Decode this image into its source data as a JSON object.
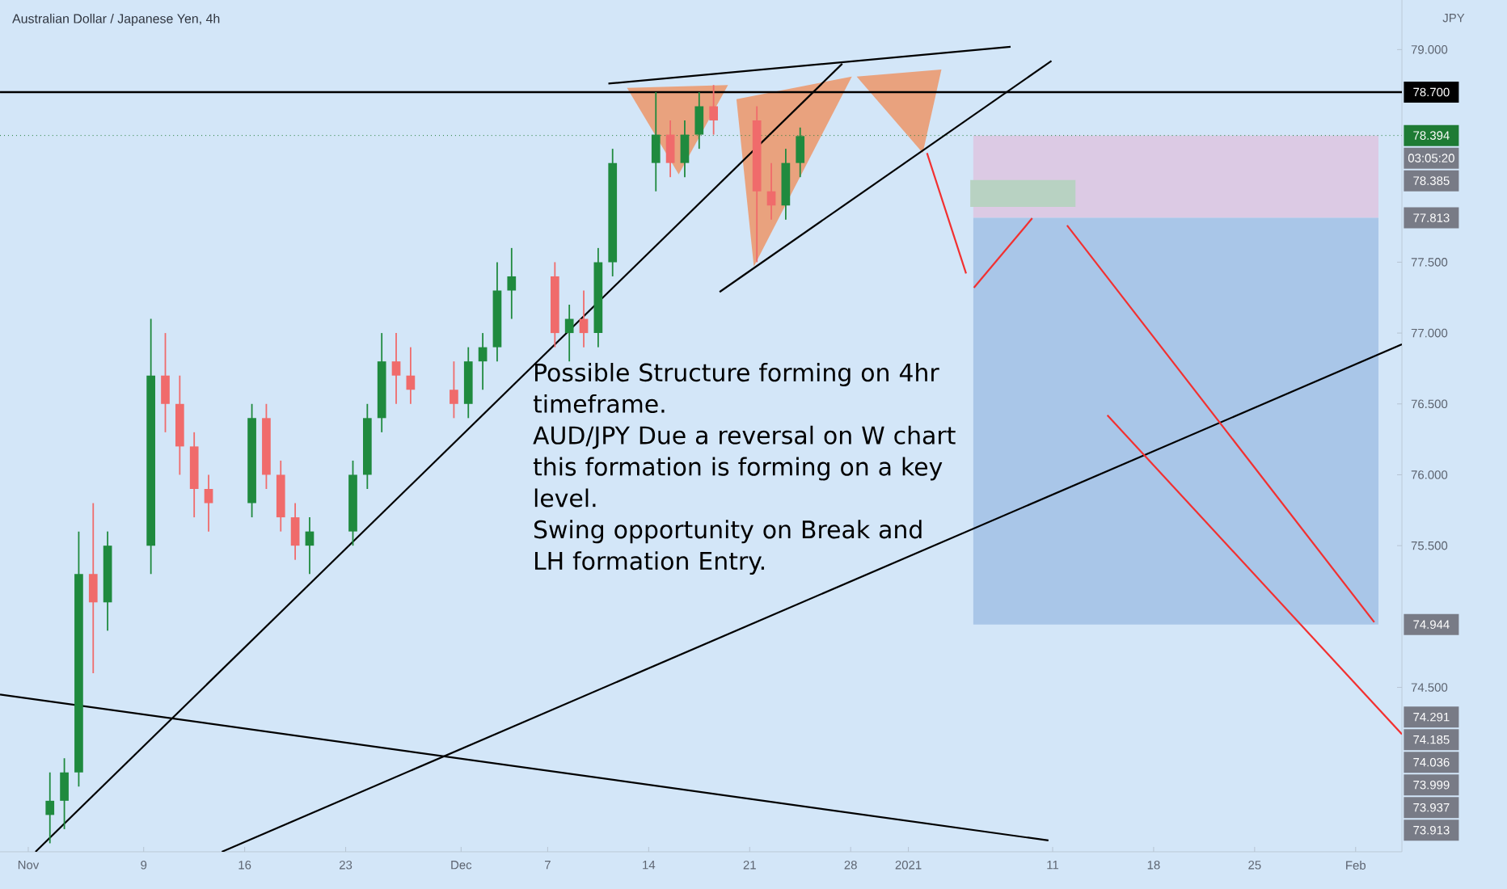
{
  "chart_data": {
    "type": "candlestick",
    "title": "Australian Dollar / Japanese Yen, 4h",
    "ylabel": "JPY",
    "x": [
      "2020-11-02T12:00",
      "2020-11-03T12:00",
      "2020-11-04T12:00",
      "2020-11-05T12:00",
      "2020-11-06T12:00",
      "2020-11-09T12:00",
      "2020-11-10T12:00",
      "2020-11-11T12:00",
      "2020-11-12T12:00",
      "2020-11-13T12:00",
      "2020-11-16T12:00",
      "2020-11-17T12:00",
      "2020-11-18T12:00",
      "2020-11-19T12:00",
      "2020-11-20T12:00",
      "2020-11-23T12:00",
      "2020-11-24T12:00",
      "2020-11-25T12:00",
      "2020-11-26T12:00",
      "2020-11-27T12:00",
      "2020-11-30T12:00",
      "2020-12-01T12:00",
      "2020-12-02T12:00",
      "2020-12-03T12:00",
      "2020-12-04T12:00",
      "2020-12-07T12:00",
      "2020-12-08T12:00",
      "2020-12-09T12:00",
      "2020-12-10T12:00",
      "2020-12-11T12:00",
      "2020-12-14T12:00",
      "2020-12-15T12:00",
      "2020-12-16T12:00",
      "2020-12-17T12:00",
      "2020-12-18T12:00",
      "2020-12-21T12:00",
      "2020-12-22T12:00",
      "2020-12-23T12:00",
      "2020-12-24T12:00"
    ],
    "ohlc": [
      [
        73.6,
        73.9,
        73.4,
        73.7
      ],
      [
        73.7,
        74.0,
        73.5,
        73.9
      ],
      [
        73.9,
        75.6,
        73.8,
        75.3
      ],
      [
        75.3,
        75.8,
        74.6,
        75.1
      ],
      [
        75.1,
        75.6,
        74.9,
        75.5
      ],
      [
        75.5,
        77.1,
        75.3,
        76.7
      ],
      [
        76.7,
        77.0,
        76.3,
        76.5
      ],
      [
        76.5,
        76.7,
        76.0,
        76.2
      ],
      [
        76.2,
        76.3,
        75.7,
        75.9
      ],
      [
        75.9,
        76.0,
        75.6,
        75.8
      ],
      [
        75.8,
        76.5,
        75.7,
        76.4
      ],
      [
        76.4,
        76.5,
        75.9,
        76.0
      ],
      [
        76.0,
        76.1,
        75.6,
        75.7
      ],
      [
        75.7,
        75.8,
        75.4,
        75.5
      ],
      [
        75.5,
        75.7,
        75.3,
        75.6
      ],
      [
        75.6,
        76.1,
        75.5,
        76.0
      ],
      [
        76.0,
        76.5,
        75.9,
        76.4
      ],
      [
        76.4,
        77.0,
        76.3,
        76.8
      ],
      [
        76.8,
        77.0,
        76.5,
        76.7
      ],
      [
        76.7,
        76.9,
        76.5,
        76.6
      ],
      [
        76.6,
        76.8,
        76.4,
        76.5
      ],
      [
        76.5,
        76.9,
        76.4,
        76.8
      ],
      [
        76.8,
        77.0,
        76.6,
        76.9
      ],
      [
        76.9,
        77.5,
        76.8,
        77.3
      ],
      [
        77.3,
        77.6,
        77.1,
        77.4
      ],
      [
        77.4,
        77.5,
        76.9,
        77.0
      ],
      [
        77.0,
        77.2,
        76.8,
        77.1
      ],
      [
        77.1,
        77.3,
        76.9,
        77.0
      ],
      [
        77.0,
        77.6,
        76.9,
        77.5
      ],
      [
        77.5,
        78.3,
        77.4,
        78.2
      ],
      [
        78.2,
        78.7,
        78.0,
        78.4
      ],
      [
        78.4,
        78.5,
        78.1,
        78.2
      ],
      [
        78.2,
        78.5,
        78.1,
        78.4
      ],
      [
        78.4,
        78.7,
        78.3,
        78.6
      ],
      [
        78.6,
        78.75,
        78.4,
        78.5
      ],
      [
        78.5,
        78.6,
        77.5,
        78.0
      ],
      [
        78.0,
        78.2,
        77.8,
        77.9
      ],
      [
        77.9,
        78.3,
        77.8,
        78.2
      ],
      [
        78.2,
        78.45,
        78.1,
        78.39
      ]
    ],
    "series": [
      {
        "type": "area",
        "color": "#dccae4",
        "x": [
          "2021-01-05T12:00",
          "2021-02-02T14:00",
          "2021-02-02T14:00",
          "2021-01-05T12:00"
        ],
        "values": [
          78.394,
          78.394,
          77.813,
          77.813
        ]
      },
      {
        "type": "area",
        "color": "#a9c6e8",
        "x": [
          "2021-01-05T12:00",
          "2021-02-02T14:00",
          "2021-02-02T14:00",
          "2021-01-05T12:00"
        ],
        "values": [
          77.813,
          77.813,
          74.944,
          74.944
        ]
      },
      {
        "type": "area",
        "color": "#b8d2c2",
        "x": [
          "2021-01-05T07:00",
          "2021-01-12T14:00",
          "2021-01-12T14:00",
          "2021-01-05T07:00"
        ],
        "values": [
          78.08,
          78.08,
          77.89,
          77.89
        ]
      },
      {
        "type": "area",
        "color": "#e9a27e",
        "x": [
          "2020-12-12T12:00",
          "2020-12-19T12:00",
          "2020-12-16T02:00"
        ],
        "values": [
          78.73,
          78.75,
          78.12
        ]
      },
      {
        "type": "area",
        "color": "#e9a27e",
        "x": [
          "2020-12-20T02:00",
          "2020-12-28T02:00",
          "2020-12-21T07:00"
        ],
        "values": [
          78.65,
          78.81,
          77.47
        ]
      },
      {
        "type": "area",
        "color": "#e9a27e",
        "x": [
          "2020-12-28T10:00",
          "2021-01-03T07:00",
          "2021-01-02T00:00"
        ],
        "values": [
          78.81,
          78.86,
          78.27
        ]
      },
      {
        "type": "line",
        "color": "#000000",
        "x": [
          "2020-11-01T12:00",
          "2020-12-27T10:00"
        ],
        "values": [
          73.34,
          78.9
        ]
      },
      {
        "type": "line",
        "color": "#000000",
        "x": [
          "2020-12-11T05:00",
          "2021-01-08T02:00"
        ],
        "values": [
          78.76,
          79.02
        ]
      },
      {
        "type": "line",
        "color": "#000000",
        "x": [
          "2020-12-18T22:00",
          "2021-01-10T22:00"
        ],
        "values": [
          77.29,
          78.92
        ]
      },
      {
        "type": "line",
        "color": "#000000",
        "x": [
          "2020-11-14T10:00",
          "2021-02-04T05:00"
        ],
        "values": [
          73.34,
          76.92
        ]
      },
      {
        "type": "line",
        "color": "#000000",
        "x": [
          "2020-10-30T01:00",
          "2021-01-10T17:00"
        ],
        "values": [
          74.45,
          73.42
        ]
      },
      {
        "type": "line",
        "color": "#f23030",
        "x": [
          "2021-01-02T07:00",
          "2021-01-05T00:00"
        ],
        "values": [
          78.27,
          77.42
        ]
      },
      {
        "type": "line",
        "color": "#f23030",
        "x": [
          "2021-01-05T13:00",
          "2021-01-09T14:00"
        ],
        "values": [
          77.32,
          77.81
        ]
      },
      {
        "type": "line",
        "color": "#f23030",
        "x": [
          "2021-01-12T00:00",
          "2021-02-02T07:00"
        ],
        "values": [
          77.76,
          74.96
        ]
      },
      {
        "type": "line",
        "color": "#f23030",
        "x": [
          "2021-01-14T19:00",
          "2021-02-04T05:00"
        ],
        "values": [
          76.42,
          74.17
        ]
      }
    ],
    "ref_lines": [
      {
        "axis": "y",
        "value": 78.7,
        "label": "78.700",
        "color": "#000000",
        "line_style": "solid"
      },
      {
        "axis": "y",
        "value": 78.394,
        "label": "78.394",
        "color": "#1e7b34",
        "line_style": "dotted"
      }
    ],
    "annotations": [
      "Possible Structure forming on 4hr timeframe.",
      "AUD/JPY Due a reversal on W chart this formation is forming on a key level.",
      "Swing opportunity on Break and LH formation Entry.",
      "03:05:20",
      "78.385",
      {
        "text": "77.813",
        "y": 77.813
      },
      {
        "text": "74.944",
        "y": 74.944
      },
      {
        "text": "74.291",
        "y": 74.291
      },
      "74.185",
      "74.036",
      "73.999",
      "73.937",
      "73.913"
    ],
    "xlim": [
      "2020-10-30T01:00",
      "2021-02-04T05:00"
    ],
    "ylim": [
      73.34,
      79.35
    ],
    "xticks": [
      {
        "value": "2020-11-01",
        "label": "Nov"
      },
      {
        "value": "2020-11-09",
        "label": "9"
      },
      {
        "value": "2020-11-16",
        "label": "16"
      },
      {
        "value": "2020-11-23",
        "label": "23"
      },
      {
        "value": "2020-12-01",
        "label": "Dec"
      },
      {
        "value": "2020-12-07",
        "label": "7"
      },
      {
        "value": "2020-12-14",
        "label": "14"
      },
      {
        "value": "2020-12-21",
        "label": "21"
      },
      {
        "value": "2020-12-28",
        "label": "28"
      },
      {
        "value": "2021-01-01",
        "label": "2021"
      },
      {
        "value": "2021-01-11",
        "label": "11"
      },
      {
        "value": "2021-01-18",
        "label": "18"
      },
      {
        "value": "2021-01-25",
        "label": "25"
      },
      {
        "value": "2021-02-01",
        "label": "Feb"
      }
    ],
    "yticks": [
      {
        "value": 79,
        "label": "79.000"
      },
      {
        "value": 77.5,
        "label": "77.500"
      },
      {
        "value": 77,
        "label": "77.000"
      },
      {
        "value": 76.5,
        "label": "76.500"
      },
      {
        "value": 76,
        "label": "76.000"
      },
      {
        "value": 75.5,
        "label": "75.500"
      },
      {
        "value": 74.5,
        "label": "74.500"
      }
    ],
    "grid": false
  }
}
